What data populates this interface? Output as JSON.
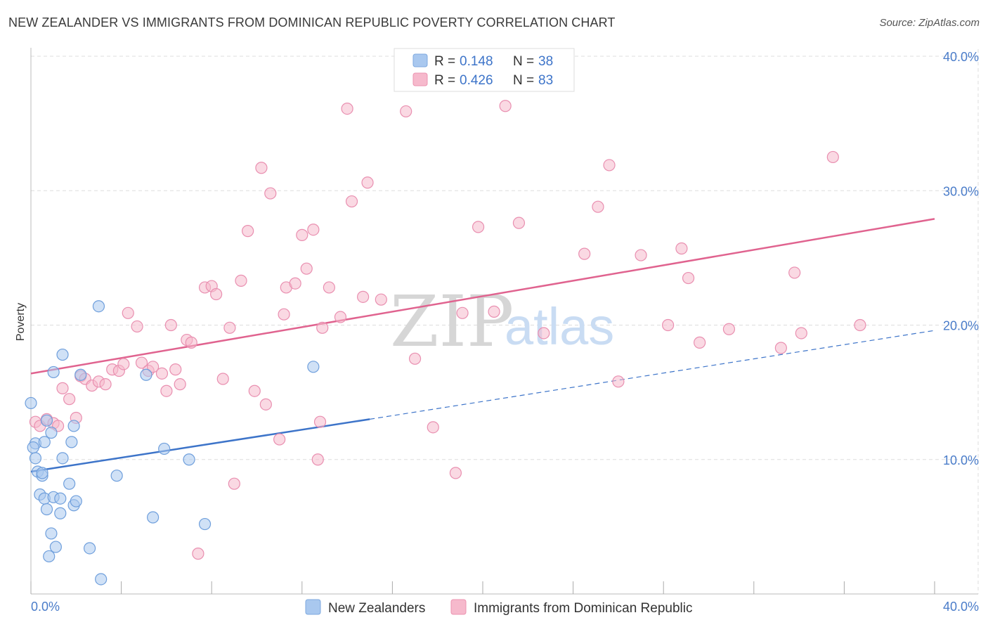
{
  "title": "NEW ZEALANDER VS IMMIGRANTS FROM DOMINICAN REPUBLIC POVERTY CORRELATION CHART",
  "source": "Source: ZipAtlas.com",
  "colors": {
    "blue": "#3d74c9",
    "blue_fill": "#a9c8ef",
    "pink": "#e0638f",
    "pink_fill": "#f6b9cc",
    "grid": "#dddddd",
    "axis_text": "#4a7cc9"
  },
  "legend": {
    "series1": {
      "r_label": "R =",
      "r_value": "0.148",
      "n_label": "N =",
      "n_value": "38"
    },
    "series2": {
      "r_label": "R =",
      "r_value": "0.426",
      "n_label": "N =",
      "n_value": "83"
    }
  },
  "bottom_legend": {
    "series1": "New Zealanders",
    "series2": "Immigrants from Dominican Republic"
  },
  "watermark": {
    "zip": "ZIP",
    "atlas": "atlas"
  },
  "chart_data": {
    "type": "scatter",
    "ylabel": "Poverty",
    "xlim": [
      0,
      40
    ],
    "ylim": [
      0,
      40
    ],
    "x_tick_labels": [
      "0.0%",
      "40.0%"
    ],
    "y_ticks": [
      10,
      20,
      30,
      40
    ],
    "y_tick_labels": [
      "10.0%",
      "20.0%",
      "30.0%",
      "40.0%"
    ],
    "grid": true,
    "series": [
      {
        "name": "New Zealanders",
        "r": 0.148,
        "n": 38,
        "trend": {
          "x0": 0,
          "y0": 9.1,
          "x1": 15,
          "y1": 13.0,
          "dashed_to_x": 40,
          "dashed_to_y": 19.6
        },
        "points": [
          [
            0.0,
            14.2
          ],
          [
            0.2,
            11.2
          ],
          [
            0.2,
            10.1
          ],
          [
            0.3,
            9.1
          ],
          [
            0.4,
            7.4
          ],
          [
            0.5,
            8.8
          ],
          [
            0.5,
            9.0
          ],
          [
            0.6,
            11.3
          ],
          [
            0.6,
            7.1
          ],
          [
            0.7,
            6.3
          ],
          [
            0.7,
            12.9
          ],
          [
            0.8,
            2.8
          ],
          [
            0.9,
            12.0
          ],
          [
            0.9,
            4.5
          ],
          [
            1.0,
            7.2
          ],
          [
            1.0,
            16.5
          ],
          [
            1.1,
            3.5
          ],
          [
            1.3,
            7.1
          ],
          [
            1.3,
            6.0
          ],
          [
            1.4,
            10.1
          ],
          [
            1.4,
            17.8
          ],
          [
            1.7,
            8.2
          ],
          [
            1.8,
            11.3
          ],
          [
            1.9,
            6.6
          ],
          [
            1.9,
            12.5
          ],
          [
            2.0,
            6.9
          ],
          [
            2.2,
            16.3
          ],
          [
            2.6,
            3.4
          ],
          [
            3.0,
            21.4
          ],
          [
            3.1,
            1.1
          ],
          [
            3.8,
            8.8
          ],
          [
            5.1,
            16.3
          ],
          [
            5.4,
            5.7
          ],
          [
            5.9,
            10.8
          ],
          [
            7.0,
            10.0
          ],
          [
            7.7,
            5.2
          ],
          [
            12.5,
            16.9
          ],
          [
            0.1,
            10.9
          ]
        ]
      },
      {
        "name": "Immigrants from Dominican Republic",
        "r": 0.426,
        "n": 83,
        "trend": {
          "x0": 0,
          "y0": 16.4,
          "x1": 40,
          "y1": 27.9
        },
        "points": [
          [
            0.2,
            12.8
          ],
          [
            0.4,
            12.5
          ],
          [
            0.7,
            13.0
          ],
          [
            1.0,
            12.7
          ],
          [
            1.2,
            12.5
          ],
          [
            1.4,
            15.3
          ],
          [
            1.7,
            14.5
          ],
          [
            2.0,
            13.1
          ],
          [
            2.2,
            16.2
          ],
          [
            2.4,
            16.0
          ],
          [
            2.7,
            15.5
          ],
          [
            3.0,
            15.8
          ],
          [
            3.3,
            15.6
          ],
          [
            3.6,
            16.7
          ],
          [
            3.9,
            16.6
          ],
          [
            4.1,
            17.1
          ],
          [
            4.3,
            20.9
          ],
          [
            4.7,
            19.9
          ],
          [
            4.9,
            17.2
          ],
          [
            5.2,
            16.6
          ],
          [
            5.4,
            16.9
          ],
          [
            5.8,
            16.4
          ],
          [
            6.0,
            15.1
          ],
          [
            6.2,
            20.0
          ],
          [
            6.4,
            16.7
          ],
          [
            6.6,
            15.6
          ],
          [
            6.9,
            18.9
          ],
          [
            7.1,
            18.7
          ],
          [
            7.7,
            22.8
          ],
          [
            8.0,
            22.9
          ],
          [
            8.2,
            22.3
          ],
          [
            8.5,
            16.0
          ],
          [
            8.8,
            19.8
          ],
          [
            9.0,
            8.2
          ],
          [
            9.3,
            23.3
          ],
          [
            9.6,
            27.0
          ],
          [
            9.9,
            15.1
          ],
          [
            10.2,
            31.7
          ],
          [
            10.4,
            14.1
          ],
          [
            10.6,
            29.8
          ],
          [
            11.0,
            11.5
          ],
          [
            11.2,
            20.8
          ],
          [
            11.3,
            22.8
          ],
          [
            11.7,
            23.1
          ],
          [
            12.0,
            26.7
          ],
          [
            12.2,
            24.2
          ],
          [
            12.5,
            27.1
          ],
          [
            12.7,
            10.0
          ],
          [
            12.9,
            19.8
          ],
          [
            13.2,
            22.8
          ],
          [
            13.7,
            20.6
          ],
          [
            14.0,
            36.1
          ],
          [
            14.2,
            29.2
          ],
          [
            14.7,
            22.1
          ],
          [
            14.9,
            30.6
          ],
          [
            15.5,
            21.9
          ],
          [
            16.6,
            35.9
          ],
          [
            17.0,
            17.5
          ],
          [
            17.8,
            12.4
          ],
          [
            18.8,
            9.0
          ],
          [
            19.1,
            20.9
          ],
          [
            19.8,
            27.3
          ],
          [
            20.5,
            21.0
          ],
          [
            21.0,
            36.3
          ],
          [
            21.6,
            27.6
          ],
          [
            22.7,
            19.4
          ],
          [
            7.4,
            3.0
          ],
          [
            24.5,
            25.3
          ],
          [
            25.1,
            28.8
          ],
          [
            25.6,
            31.9
          ],
          [
            26.0,
            15.8
          ],
          [
            27.0,
            25.2
          ],
          [
            28.2,
            20.0
          ],
          [
            28.8,
            25.7
          ],
          [
            29.1,
            23.5
          ],
          [
            29.6,
            18.7
          ],
          [
            30.9,
            19.7
          ],
          [
            33.2,
            18.3
          ],
          [
            33.8,
            23.9
          ],
          [
            34.1,
            19.4
          ],
          [
            35.5,
            32.5
          ],
          [
            36.7,
            20.0
          ],
          [
            12.8,
            12.8
          ]
        ]
      }
    ]
  }
}
